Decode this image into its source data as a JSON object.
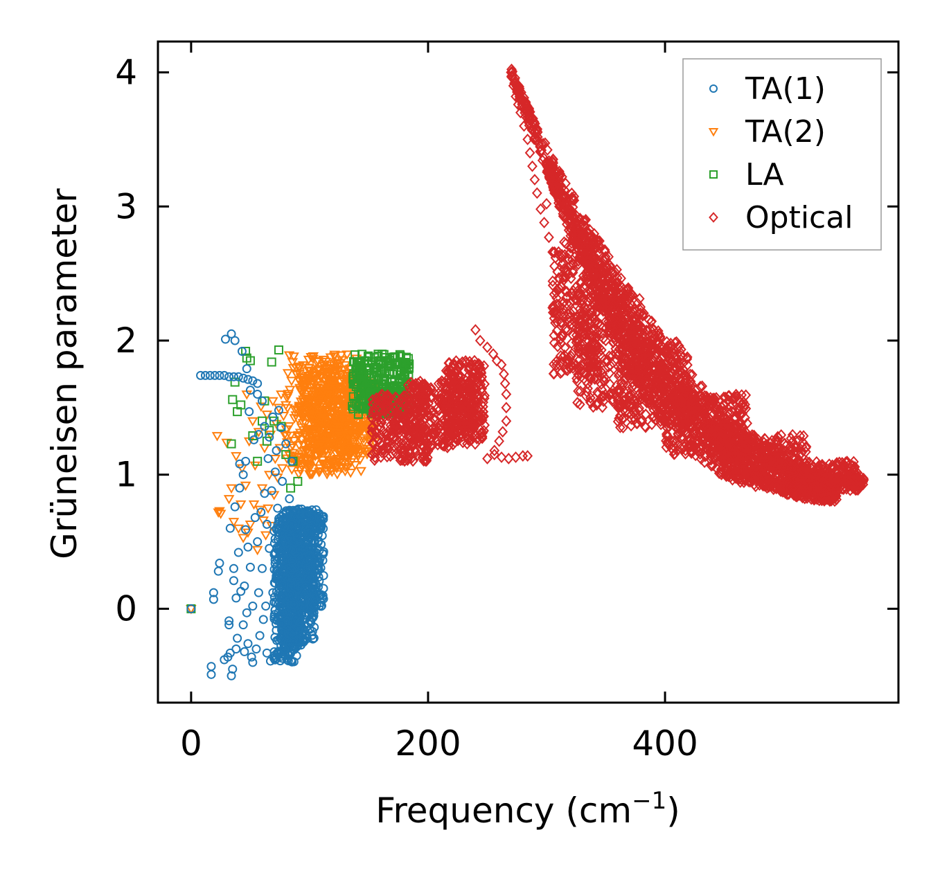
{
  "chart_data": {
    "type": "scatter",
    "xlabel": "Frequency (cm",
    "xlabel_sup": "−1",
    "xlabel_close": ")",
    "ylabel": "Grüneisen parameter",
    "xlim": [
      -28,
      597
    ],
    "ylim": [
      -0.7,
      4.23
    ],
    "x_ticks": [
      0,
      200,
      400
    ],
    "x_tick_labels": [
      "0",
      "200",
      "400"
    ],
    "y_ticks": [
      0,
      1,
      2,
      3,
      4
    ],
    "y_tick_labels": [
      "0",
      "1",
      "2",
      "3",
      "4"
    ],
    "legend_position": "top-right",
    "series": [
      {
        "name": "TA(1)",
        "marker": "circle",
        "color": "#1f77b4",
        "points": [
          [
            0,
            0
          ],
          [
            8,
            1.74
          ],
          [
            12,
            1.74
          ],
          [
            16,
            1.74
          ],
          [
            20,
            1.74
          ],
          [
            24,
            1.74
          ],
          [
            28,
            1.74
          ],
          [
            32,
            1.73
          ],
          [
            36,
            1.73
          ],
          [
            40,
            1.73
          ],
          [
            44,
            1.72
          ],
          [
            48,
            1.71
          ],
          [
            52,
            1.7
          ],
          [
            56,
            1.68
          ],
          [
            17,
            -0.49
          ],
          [
            17,
            -0.43
          ],
          [
            19,
            0.07
          ],
          [
            19,
            0.12
          ],
          [
            23,
            0.28
          ],
          [
            24,
            0.34
          ],
          [
            28,
            -0.38
          ],
          [
            29,
            2.01
          ],
          [
            31,
            -0.36
          ],
          [
            32,
            -0.12
          ],
          [
            32,
            -0.09
          ],
          [
            33,
            -0.33
          ],
          [
            33,
            0.6
          ],
          [
            34,
            2.05
          ],
          [
            34,
            -0.5
          ],
          [
            35,
            -0.45
          ],
          [
            36,
            0.21
          ],
          [
            36,
            0.3
          ],
          [
            37,
            0.76
          ],
          [
            37,
            2.0
          ],
          [
            38,
            -0.3
          ],
          [
            38,
            0.08
          ],
          [
            39,
            -0.22
          ],
          [
            40,
            0.42
          ],
          [
            41,
            0.9
          ],
          [
            41,
            1.08
          ],
          [
            42,
            0.13
          ],
          [
            43,
            1.92
          ],
          [
            44,
            -0.12
          ],
          [
            44,
            1.0
          ],
          [
            45,
            -0.32
          ],
          [
            45,
            0.17
          ],
          [
            46,
            0.59
          ],
          [
            46,
            1.1
          ],
          [
            47,
            -0.03
          ],
          [
            47,
            1.79
          ],
          [
            48,
            -0.26
          ],
          [
            48,
            0.46
          ],
          [
            49,
            1.47
          ],
          [
            50,
            0.31
          ],
          [
            50,
            1.63
          ],
          [
            51,
            -0.36
          ],
          [
            52,
            -0.4
          ],
          [
            52,
            0.02
          ],
          [
            53,
            1.26
          ],
          [
            54,
            0.68
          ],
          [
            55,
            -0.3
          ],
          [
            56,
            0.5
          ],
          [
            56,
            1.6
          ],
          [
            57,
            0.12
          ],
          [
            57,
            1.3
          ],
          [
            58,
            -0.2
          ],
          [
            59,
            0.72
          ],
          [
            60,
            0.3
          ],
          [
            60,
            1.55
          ],
          [
            61,
            -0.08
          ],
          [
            62,
            0.86
          ],
          [
            62,
            1.36
          ],
          [
            63,
            0.02
          ],
          [
            64,
            -0.33
          ],
          [
            64,
            0.63
          ],
          [
            65,
            1.12
          ],
          [
            66,
            0.45
          ],
          [
            66,
            1.28
          ],
          [
            67,
            -0.39
          ],
          [
            68,
            0.88
          ],
          [
            69,
            0.12
          ],
          [
            69,
            1.43
          ],
          [
            70,
            -0.37
          ],
          [
            70,
            0.58
          ],
          [
            71,
            1.02
          ],
          [
            72,
            0.28
          ],
          [
            72,
            1.18
          ],
          [
            73,
            -0.34
          ],
          [
            73,
            0.75
          ],
          [
            74,
            1.48
          ],
          [
            75,
            0.42
          ],
          [
            76,
            -0.06
          ],
          [
            76,
            1.35
          ],
          [
            77,
            0.95
          ],
          [
            78,
            0.1
          ],
          [
            79,
            -0.3
          ],
          [
            79,
            0.61
          ],
          [
            80,
            1.23
          ],
          [
            81,
            -0.38
          ],
          [
            82,
            0.3
          ],
          [
            83,
            0.82
          ],
          [
            84,
            -0.22
          ],
          [
            85,
            1.1
          ],
          [
            86,
            0.44
          ],
          [
            87,
            -0.15
          ],
          [
            88,
            0.6
          ],
          [
            89,
            -0.35
          ],
          [
            90,
            0.15
          ],
          [
            91,
            0.72
          ],
          [
            92,
            -0.1
          ],
          [
            93,
            0.33
          ],
          [
            94,
            0.55
          ],
          [
            96,
            0.05
          ],
          [
            98,
            0.7
          ],
          [
            100,
            0.4
          ],
          [
            102,
            0.68
          ],
          [
            104,
            0.22
          ],
          [
            106,
            0.6
          ],
          [
            108,
            0.71
          ],
          [
            110,
            0.66
          ]
        ],
        "bands": [
          {
            "x": [
              70,
              88
            ],
            "y": [
              -0.4,
              0.7
            ]
          },
          {
            "x": [
              76,
              96
            ],
            "y": [
              -0.3,
              0.72
            ]
          },
          {
            "x": [
              80,
              104
            ],
            "y": [
              -0.25,
              0.74
            ]
          },
          {
            "x": [
              84,
              112
            ],
            "y": [
              0.0,
              0.75
            ]
          }
        ]
      },
      {
        "name": "TA(2)",
        "marker": "triangle-down",
        "color": "#ff7f0e",
        "points": [
          [
            0,
            0
          ],
          [
            22,
            1.29
          ],
          [
            23,
            0.72
          ],
          [
            24,
            0.73
          ],
          [
            25,
            0.71
          ],
          [
            30,
            1.24
          ],
          [
            32,
            0.82
          ],
          [
            34,
            0.9
          ],
          [
            36,
            0.65
          ],
          [
            38,
            1.14
          ],
          [
            40,
            0.6
          ],
          [
            42,
            0.78
          ],
          [
            43,
            1.05
          ],
          [
            44,
            0.53
          ],
          [
            46,
            0.92
          ],
          [
            47,
            1.6
          ],
          [
            48,
            0.57
          ],
          [
            49,
            1.25
          ],
          [
            50,
            0.63
          ],
          [
            52,
            1.4
          ],
          [
            53,
            0.78
          ],
          [
            54,
            1.07
          ],
          [
            56,
            0.44
          ],
          [
            57,
            1.32
          ],
          [
            58,
            0.74
          ],
          [
            59,
            1.51
          ],
          [
            60,
            0.9
          ],
          [
            61,
            0.66
          ],
          [
            62,
            1.2
          ],
          [
            63,
            0.55
          ],
          [
            64,
            1.45
          ],
          [
            65,
            0.75
          ],
          [
            66,
            1.0
          ],
          [
            67,
            1.3
          ],
          [
            68,
            0.62
          ],
          [
            69,
            1.55
          ],
          [
            70,
            0.85
          ],
          [
            71,
            1.12
          ],
          [
            72,
            1.38
          ],
          [
            73,
            0.98
          ],
          [
            74,
            1.5
          ],
          [
            75,
            1.2
          ],
          [
            76,
            1.6
          ],
          [
            77,
            1.05
          ],
          [
            78,
            1.44
          ],
          [
            79,
            1.3
          ],
          [
            80,
            1.52
          ]
        ],
        "bands": [
          {
            "x": [
              80,
              145
            ],
            "y": [
              1.0,
              1.9
            ]
          },
          {
            "x": [
              90,
              135
            ],
            "y": [
              1.05,
              1.82
            ]
          },
          {
            "x": [
              100,
              155
            ],
            "y": [
              1.15,
              1.72
            ]
          }
        ]
      },
      {
        "name": "LA",
        "marker": "square",
        "color": "#2ca02c",
        "points": [
          [
            0,
            0
          ],
          [
            34,
            1.23
          ],
          [
            35,
            1.56
          ],
          [
            37,
            1.69
          ],
          [
            39,
            1.47
          ],
          [
            42,
            1.52
          ],
          [
            46,
            1.92
          ],
          [
            47,
            1.87
          ],
          [
            50,
            1.85
          ],
          [
            52,
            1.29
          ],
          [
            56,
            1.1
          ],
          [
            60,
            1.4
          ],
          [
            62,
            1.55
          ],
          [
            64,
            1.25
          ],
          [
            66,
            1.33
          ],
          [
            68,
            1.84
          ],
          [
            70,
            1.4
          ],
          [
            74,
            1.93
          ],
          [
            76,
            1.36
          ],
          [
            80,
            1.15
          ],
          [
            84,
            0.9
          ],
          [
            86,
            1.1
          ],
          [
            90,
            0.95
          ]
        ],
        "bands": [
          {
            "x": [
              136,
              185
            ],
            "y": [
              1.45,
              1.9
            ]
          },
          {
            "x": [
              150,
              180
            ],
            "y": [
              1.48,
              1.62
            ]
          }
        ]
      },
      {
        "name": "Optical",
        "marker": "diamond",
        "color": "#d62728",
        "points": [
          [
            240,
            2.08
          ],
          [
            244,
            2.0
          ],
          [
            250,
            1.95
          ],
          [
            255,
            1.9
          ],
          [
            258,
            1.85
          ],
          [
            262,
            1.82
          ],
          [
            264,
            1.75
          ],
          [
            265,
            1.68
          ],
          [
            266,
            1.6
          ],
          [
            266,
            1.5
          ],
          [
            266,
            1.4
          ],
          [
            263,
            1.32
          ],
          [
            260,
            1.25
          ],
          [
            256,
            1.18
          ],
          [
            250,
            1.12
          ],
          [
            256,
            1.15
          ],
          [
            262,
            1.13
          ],
          [
            268,
            1.12
          ],
          [
            274,
            1.13
          ],
          [
            280,
            1.14
          ],
          [
            284,
            1.14
          ],
          [
            270,
            4.0
          ],
          [
            271,
            3.96
          ],
          [
            272,
            3.9
          ],
          [
            274,
            3.82
          ],
          [
            276,
            3.76
          ],
          [
            278,
            3.7
          ],
          [
            281,
            3.6
          ],
          [
            284,
            3.5
          ],
          [
            286,
            3.4
          ],
          [
            288,
            3.3
          ],
          [
            290,
            3.2
          ],
          [
            292,
            3.1
          ],
          [
            295,
            2.98
          ],
          [
            298,
            2.88
          ],
          [
            302,
            2.77
          ],
          [
            300,
            3.02
          ],
          [
            305,
            2.66
          ]
        ],
        "bands": [
          {
            "x": [
              152,
              200
            ],
            "y": [
              1.1,
              1.6
            ]
          },
          {
            "x": [
              180,
              240
            ],
            "y": [
              1.2,
              1.7
            ]
          },
          {
            "x": [
              215,
              248
            ],
            "y": [
              1.25,
              1.85
            ]
          },
          {
            "x": [
              305,
              345
            ],
            "y": [
              1.75,
              2.75
            ]
          },
          {
            "x": [
              325,
              380
            ],
            "y": [
              1.5,
              2.35
            ]
          },
          {
            "x": [
              360,
              420
            ],
            "y": [
              1.35,
              2.0
            ]
          },
          {
            "x": [
              400,
              470
            ],
            "y": [
              1.15,
              1.6
            ]
          },
          {
            "x": [
              450,
              520
            ],
            "y": [
              0.95,
              1.3
            ]
          },
          {
            "x": [
              500,
              565
            ],
            "y": [
              0.88,
              1.1
            ]
          }
        ],
        "curves": [
          {
            "x0": 270,
            "x1": 568,
            "y0": 4.0,
            "y1": 0.94,
            "spread": 0.22
          },
          {
            "x0": 300,
            "x1": 545,
            "y0": 3.3,
            "y1": 0.84,
            "spread": 0.25
          }
        ]
      }
    ]
  }
}
